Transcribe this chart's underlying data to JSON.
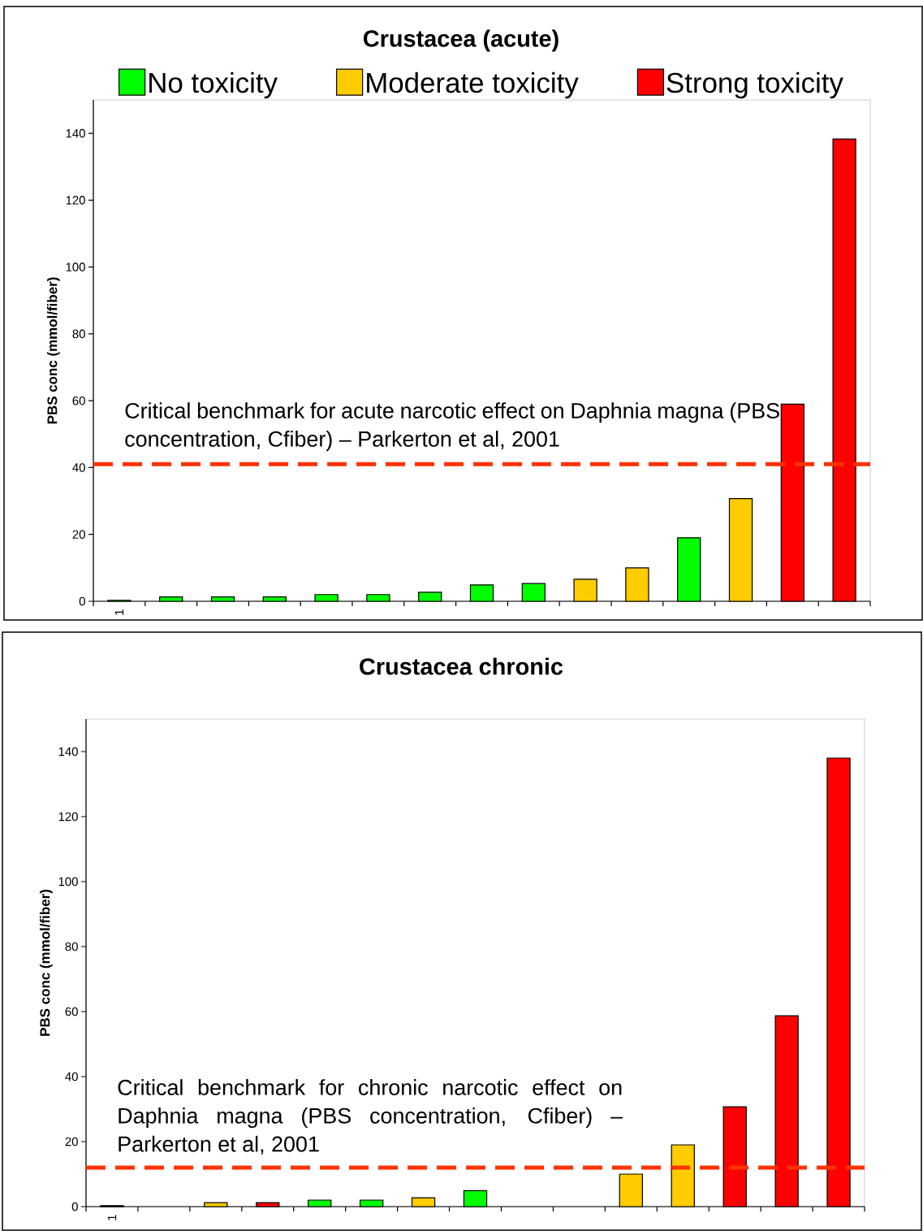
{
  "chart_data": [
    {
      "type": "bar",
      "title": "Crustacea (acute)",
      "ylabel": "PBS conc (mmol/fiber)",
      "categories": [
        "1",
        null,
        null,
        null,
        null,
        null,
        null,
        null,
        null,
        null,
        null,
        null,
        null,
        null,
        null
      ],
      "ylim": [
        0,
        150
      ],
      "yticks": [
        0,
        20,
        40,
        60,
        80,
        100,
        120,
        140
      ],
      "legend": "top",
      "series": [
        {
          "name": "No toxicity",
          "color": "#00ff00",
          "values": [
            0.3,
            1.3,
            1.3,
            1.3,
            2,
            2,
            2.7,
            4.9,
            5.3,
            null,
            null,
            19,
            null,
            null,
            null
          ]
        },
        {
          "name": "Moderate toxicity",
          "color": "#ffcc00",
          "values": [
            null,
            null,
            null,
            null,
            null,
            null,
            null,
            null,
            null,
            6.6,
            10,
            null,
            30.7,
            null,
            null
          ]
        },
        {
          "name": "Strong toxicity",
          "color": "#ff0000",
          "values": [
            null,
            null,
            null,
            null,
            null,
            null,
            null,
            null,
            null,
            null,
            null,
            null,
            null,
            59,
            138.3
          ]
        }
      ],
      "ref_lines": [
        {
          "axis": "y",
          "value": 41,
          "label": "Critical benchmark for acute narcotic effect on Daphnia magna (PBS concentration, Cfiber) – Parkerton et al, 2001",
          "color": "#ff3300",
          "line_style": "dashed"
        }
      ]
    },
    {
      "type": "bar",
      "title": "Crustacea chronic",
      "ylabel": "PBS conc (mmol/fiber)",
      "categories": [
        "1",
        null,
        null,
        null,
        null,
        null,
        null,
        null,
        null,
        null,
        null,
        null,
        null,
        null,
        null
      ],
      "ylim": [
        0,
        150
      ],
      "yticks": [
        0,
        20,
        40,
        60,
        80,
        100,
        120,
        140
      ],
      "series": [
        {
          "color": "#00ff00",
          "values": [
            0.3,
            null,
            null,
            null,
            2,
            2,
            null,
            4.9,
            null,
            null,
            null,
            null,
            null,
            null,
            null
          ]
        },
        {
          "color": "#ffcc00",
          "values": [
            null,
            null,
            1.2,
            null,
            null,
            null,
            2.7,
            null,
            null,
            null,
            10,
            19,
            null,
            null,
            null
          ]
        },
        {
          "color": "#ff0000",
          "values": [
            null,
            null,
            null,
            1.2,
            null,
            null,
            null,
            null,
            null,
            null,
            null,
            null,
            30.7,
            58.7,
            138
          ]
        }
      ],
      "ref_lines": [
        {
          "axis": "y",
          "value": 12,
          "label": "Critical benchmark for chronic narcotic effect on Daphnia magna (PBS concentration, Cfiber) – Parkerton et al, 2001",
          "color": "#ff3300",
          "line_style": "dashed"
        }
      ]
    }
  ]
}
